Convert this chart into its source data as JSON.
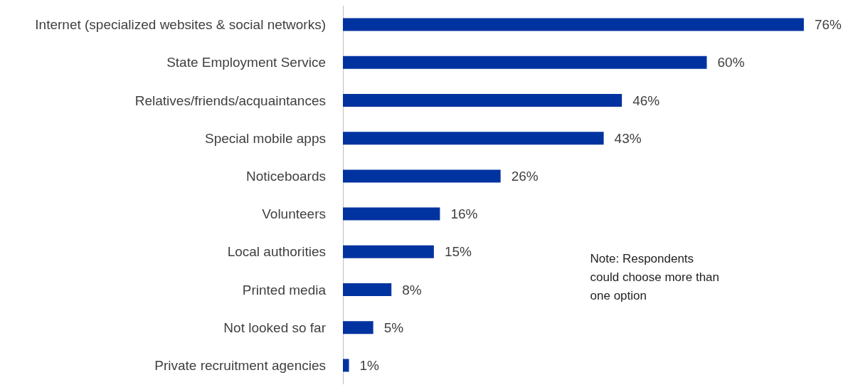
{
  "chart_data": {
    "type": "bar",
    "orientation": "horizontal",
    "categories": [
      "Internet (specialized websites & social networks)",
      "State Employment Service",
      "Relatives/friends/acquaintances",
      "Special mobile apps",
      "Noticeboards",
      "Volunteers",
      "Local authorities",
      "Printed media",
      "Not looked so far",
      "Private recruitment agencies"
    ],
    "values": [
      76,
      60,
      46,
      43,
      26,
      16,
      15,
      8,
      5,
      1
    ],
    "value_labels": [
      "76%",
      "60%",
      "46%",
      "43%",
      "26%",
      "16%",
      "15%",
      "8%",
      "5%",
      "1%"
    ],
    "color": "#0033a0",
    "annotations": [
      "Note: Respondents\ncould choose more than\none option"
    ]
  }
}
